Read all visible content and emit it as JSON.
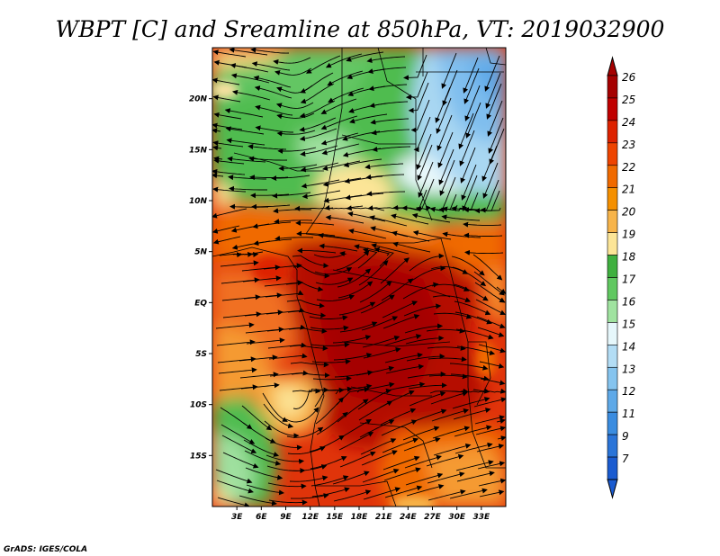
{
  "title": "WBPT [C] and Sreamline at 850hPa, VT: 2019032900",
  "credit": "GrADS: IGES/COLA",
  "map": {
    "lon_range": [
      0,
      36
    ],
    "lat_range": [
      -20,
      25
    ],
    "lat_ticks": [
      {
        "value": 20,
        "label": "20N"
      },
      {
        "value": 15,
        "label": "15N"
      },
      {
        "value": 10,
        "label": "10N"
      },
      {
        "value": 5,
        "label": "5N"
      },
      {
        "value": 0,
        "label": "EQ"
      },
      {
        "value": -5,
        "label": "5S"
      },
      {
        "value": -10,
        "label": "10S"
      },
      {
        "value": -15,
        "label": "15S"
      }
    ],
    "lon_ticks": [
      {
        "value": 3,
        "label": "3E"
      },
      {
        "value": 6,
        "label": "6E"
      },
      {
        "value": 9,
        "label": "9E"
      },
      {
        "value": 12,
        "label": "12E"
      },
      {
        "value": 15,
        "label": "15E"
      },
      {
        "value": 18,
        "label": "18E"
      },
      {
        "value": 21,
        "label": "21E"
      },
      {
        "value": 24,
        "label": "24E"
      },
      {
        "value": 27,
        "label": "27E"
      },
      {
        "value": 30,
        "label": "30E"
      },
      {
        "value": 33,
        "label": "33E"
      }
    ]
  },
  "colorbar": {
    "levels": [
      {
        "label": "26",
        "color": "#a50000"
      },
      {
        "label": "25",
        "color": "#c00000"
      },
      {
        "label": "24",
        "color": "#dd2200"
      },
      {
        "label": "23",
        "color": "#ee4400"
      },
      {
        "label": "22",
        "color": "#f06a00"
      },
      {
        "label": "21",
        "color": "#f59000"
      },
      {
        "label": "20",
        "color": "#f7b44a"
      },
      {
        "label": "19",
        "color": "#fce597"
      },
      {
        "label": "18",
        "color": "#3fb03f"
      },
      {
        "label": "17",
        "color": "#60c860"
      },
      {
        "label": "16",
        "color": "#a0e3a0"
      },
      {
        "label": "15",
        "color": "#e6f7fb"
      },
      {
        "label": "14",
        "color": "#b3ddf5"
      },
      {
        "label": "13",
        "color": "#85c4ef"
      },
      {
        "label": "12",
        "color": "#5ea9e8"
      },
      {
        "label": "11",
        "color": "#3a8ce0"
      },
      {
        "label": "9",
        "color": "#2a74d8"
      },
      {
        "label": "7",
        "color": "#1a5bd0"
      }
    ]
  }
}
